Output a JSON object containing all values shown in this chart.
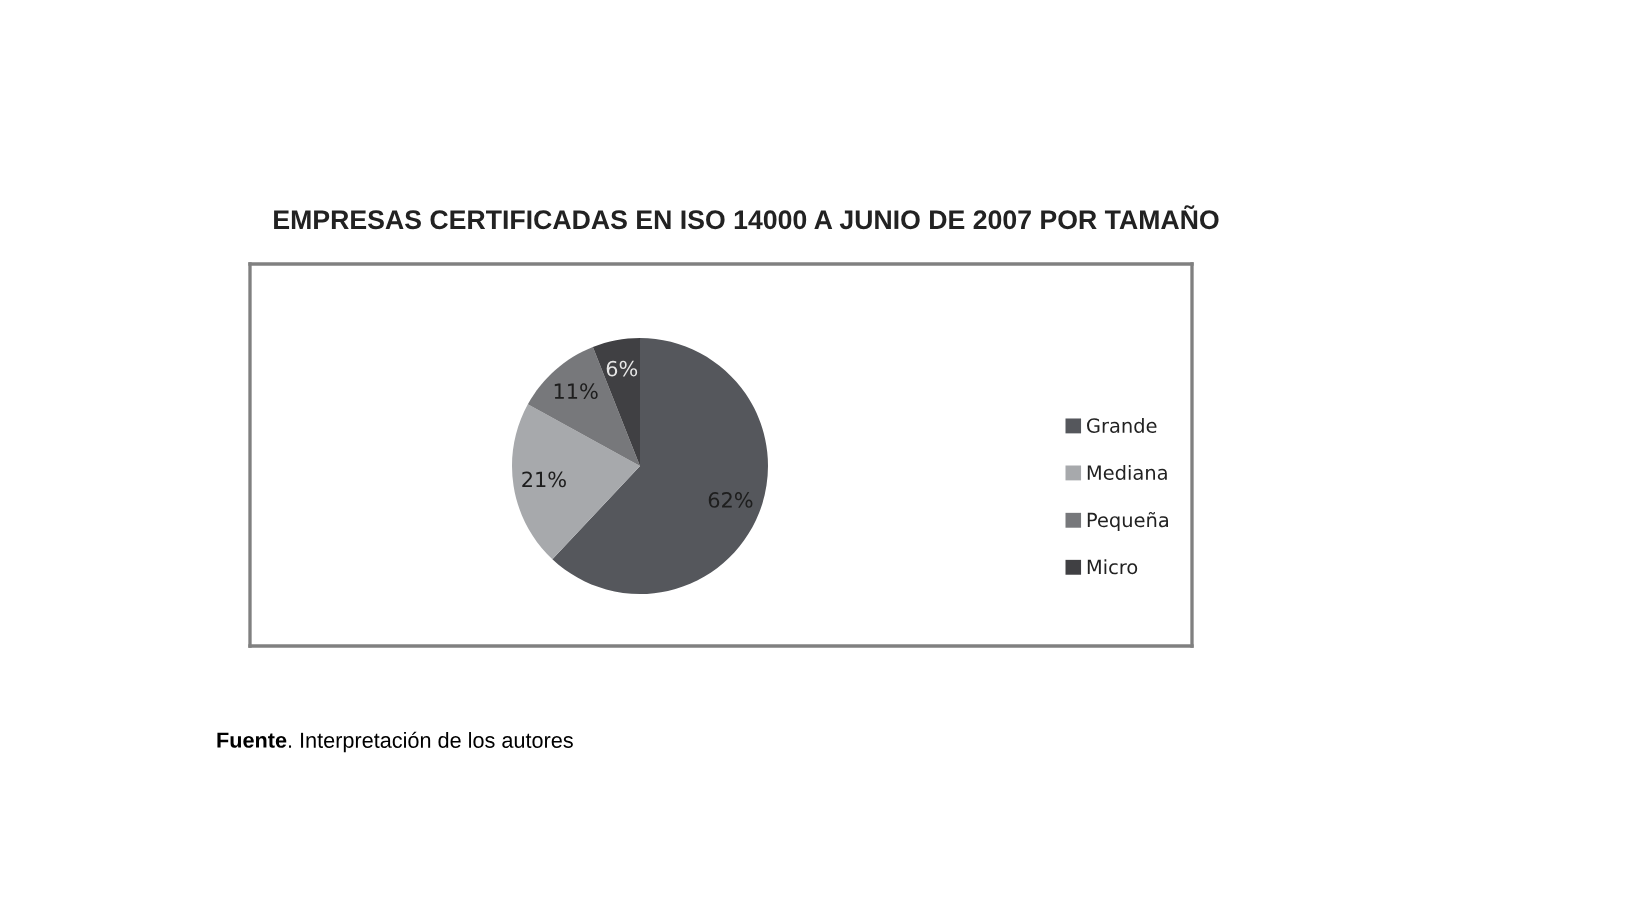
{
  "chart_data": {
    "type": "pie",
    "title": "EMPRESAS CERTIFICADAS EN ISO 14000 A JUNIO DE 2007 POR TAMAÑO",
    "categories": [
      "Grande",
      "Mediana",
      "Pequeña",
      "Micro"
    ],
    "values": [
      62,
      21,
      11,
      6
    ],
    "value_labels": [
      "62%",
      "21%",
      "11%",
      "6%"
    ],
    "colors": [
      "#55575c",
      "#a7a9ac",
      "#77787b",
      "#404043"
    ],
    "legend": "right",
    "annotations": [
      "Fuente. Interpretación de los autores"
    ]
  }
}
